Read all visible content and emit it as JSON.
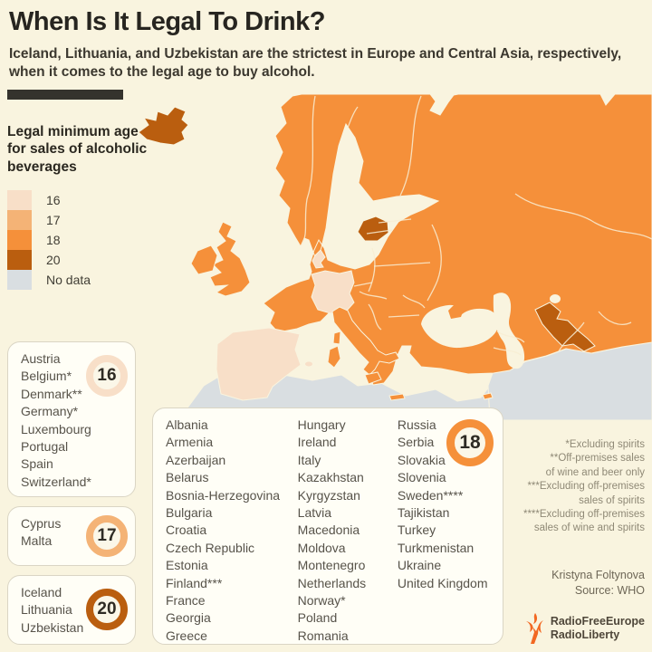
{
  "header": {
    "title": "When Is It Legal To Drink?",
    "subtitle": "Iceland, Lithuania, and Uzbekistan are the strictest in Europe and Central Asia, respectively, when it comes to the legal age to buy alcohol."
  },
  "legend": {
    "title": "Legal minimum age for sales of alcoholic beverages",
    "labels": [
      "16",
      "17",
      "18",
      "20",
      "No data"
    ]
  },
  "palette": {
    "age16": "#F8DFC8",
    "age17": "#F4B376",
    "age18": "#F5903A",
    "age20": "#BA5E0F",
    "nodata": "#D9DEE1",
    "logo_orange": "#F26822"
  },
  "groups": {
    "age16": {
      "badge": "16",
      "countries": [
        "Austria",
        "Belgium*",
        "Denmark**",
        "Germany*",
        "Luxembourg",
        "Portugal",
        "Spain",
        "Switzerland*"
      ]
    },
    "age17": {
      "badge": "17",
      "countries": [
        "Cyprus",
        "Malta"
      ]
    },
    "age18": {
      "badge": "18",
      "col1": [
        "Albania",
        "Armenia",
        "Azerbaijan",
        "Belarus",
        "Bosnia-Herzegovina",
        "Bulgaria",
        "Croatia",
        "Czech Republic",
        "Estonia",
        "Finland***",
        "France",
        "Georgia",
        "Greece"
      ],
      "col2": [
        "Hungary",
        "Ireland",
        "Italy",
        "Kazakhstan",
        "Kyrgyzstan",
        "Latvia",
        "Macedonia",
        "Moldova",
        "Montenegro",
        "Netherlands",
        "Norway*",
        "Poland",
        "Romania"
      ],
      "col3": [
        "Russia",
        "Serbia",
        "Slovakia",
        "Slovenia",
        "Sweden****",
        "Tajikistan",
        "Turkey",
        "Turkmenistan",
        "Ukraine",
        "United Kingdom"
      ]
    },
    "age20": {
      "badge": "20",
      "countries": [
        "Iceland",
        "Lithuania",
        "Uzbekistan"
      ]
    }
  },
  "footnotes": {
    "lines": [
      "*Excluding spirits",
      "**Off-premises sales",
      "of wine and beer only",
      "***Excluding off-premises",
      "sales of spirits",
      "****Excluding off-premises",
      "sales of wine and spirits"
    ]
  },
  "credit": {
    "author": "Kristyna Foltynova",
    "source": "Source: WHO"
  },
  "logo": {
    "line1": "RadioFreeEurope",
    "line2": "RadioLiberty"
  },
  "chart_data": {
    "type": "choropleth",
    "title": "Legal minimum age for sales of alcoholic beverages",
    "legend": [
      "16",
      "17",
      "18",
      "20",
      "No data"
    ],
    "groups": {
      "16": [
        "Austria",
        "Belgium",
        "Denmark",
        "Germany",
        "Luxembourg",
        "Portugal",
        "Spain",
        "Switzerland"
      ],
      "17": [
        "Cyprus",
        "Malta"
      ],
      "18": [
        "Albania",
        "Armenia",
        "Azerbaijan",
        "Belarus",
        "Bosnia-Herzegovina",
        "Bulgaria",
        "Croatia",
        "Czech Republic",
        "Estonia",
        "Finland",
        "France",
        "Georgia",
        "Greece",
        "Hungary",
        "Ireland",
        "Italy",
        "Kazakhstan",
        "Kyrgyzstan",
        "Latvia",
        "Macedonia",
        "Moldova",
        "Montenegro",
        "Netherlands",
        "Norway",
        "Poland",
        "Romania",
        "Russia",
        "Serbia",
        "Slovakia",
        "Slovenia",
        "Sweden",
        "Tajikistan",
        "Turkey",
        "Turkmenistan",
        "Ukraine",
        "United Kingdom"
      ],
      "20": [
        "Iceland",
        "Lithuania",
        "Uzbekistan"
      ]
    }
  }
}
